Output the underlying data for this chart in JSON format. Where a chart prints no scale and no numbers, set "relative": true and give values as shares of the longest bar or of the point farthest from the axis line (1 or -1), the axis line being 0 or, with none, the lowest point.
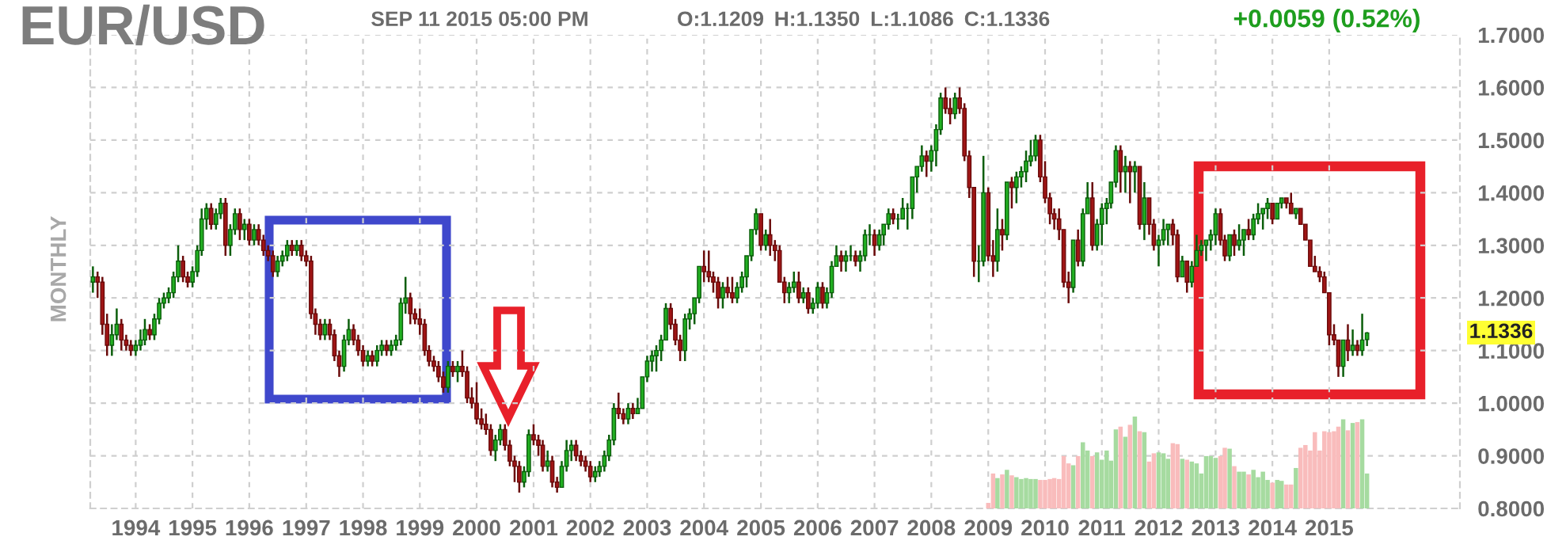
{
  "chart_data": [
    {
      "type": "candlestick",
      "title": "EUR/USD",
      "ylabel": "MONTHLY",
      "annotations": [
        "SEP 11 2015 05:00 PM",
        "O:1.1209",
        "H:1.1350",
        "L:1.1086",
        "C:1.1336",
        "+0.0059 (0.52%)",
        "1.1336"
      ],
      "x": [
        "1993-04",
        "1993-05",
        "1993-06",
        "1993-07",
        "1993-08",
        "1993-09",
        "1993-10",
        "1993-11",
        "1993-12",
        "1994-01",
        "1994-02",
        "1994-03",
        "1994-04",
        "1994-05",
        "1994-06",
        "1994-07",
        "1994-08",
        "1994-09",
        "1994-10",
        "1994-11",
        "1994-12",
        "1995-01",
        "1995-02",
        "1995-03",
        "1995-04",
        "1995-05",
        "1995-06",
        "1995-07",
        "1995-08",
        "1995-09",
        "1995-10",
        "1995-11",
        "1995-12",
        "1996-01",
        "1996-02",
        "1996-03",
        "1996-04",
        "1996-05",
        "1996-06",
        "1996-07",
        "1996-08",
        "1996-09",
        "1996-10",
        "1996-11",
        "1996-12",
        "1997-01",
        "1997-02",
        "1997-03",
        "1997-04",
        "1997-05",
        "1997-06",
        "1997-07",
        "1997-08",
        "1997-09",
        "1997-10",
        "1997-11",
        "1997-12",
        "1998-01",
        "1998-02",
        "1998-03",
        "1998-04",
        "1998-05",
        "1998-06",
        "1998-07",
        "1998-08",
        "1998-09",
        "1998-10",
        "1998-11",
        "1998-12",
        "1999-01",
        "1999-02",
        "1999-03",
        "1999-04",
        "1999-05",
        "1999-06",
        "1999-07",
        "1999-08",
        "1999-09",
        "1999-10",
        "1999-11",
        "1999-12",
        "2000-01",
        "2000-02",
        "2000-03",
        "2000-04",
        "2000-05",
        "2000-06",
        "2000-07",
        "2000-08",
        "2000-09",
        "2000-10",
        "2000-11",
        "2000-12",
        "2001-01",
        "2001-02",
        "2001-03",
        "2001-04",
        "2001-05",
        "2001-06",
        "2001-07",
        "2001-08",
        "2001-09",
        "2001-10",
        "2001-11",
        "2001-12",
        "2002-01",
        "2002-02",
        "2002-03",
        "2002-04",
        "2002-05",
        "2002-06",
        "2002-07",
        "2002-08",
        "2002-09",
        "2002-10",
        "2002-11",
        "2002-12",
        "2003-01",
        "2003-02",
        "2003-03",
        "2003-04",
        "2003-05",
        "2003-06",
        "2003-07",
        "2003-08",
        "2003-09",
        "2003-10",
        "2003-11",
        "2003-12",
        "2004-01",
        "2004-02",
        "2004-03",
        "2004-04",
        "2004-05",
        "2004-06",
        "2004-07",
        "2004-08",
        "2004-09",
        "2004-10",
        "2004-11",
        "2004-12",
        "2005-01",
        "2005-02",
        "2005-03",
        "2005-04",
        "2005-05",
        "2005-06",
        "2005-07",
        "2005-08",
        "2005-09",
        "2005-10",
        "2005-11",
        "2005-12",
        "2006-01",
        "2006-02",
        "2006-03",
        "2006-04",
        "2006-05",
        "2006-06",
        "2006-07",
        "2006-08",
        "2006-09",
        "2006-10",
        "2006-11",
        "2006-12",
        "2007-01",
        "2007-02",
        "2007-03",
        "2007-04",
        "2007-05",
        "2007-06",
        "2007-07",
        "2007-08",
        "2007-09",
        "2007-10",
        "2007-11",
        "2007-12",
        "2008-01",
        "2008-02",
        "2008-03",
        "2008-04",
        "2008-05",
        "2008-06",
        "2008-07",
        "2008-08",
        "2008-09",
        "2008-10",
        "2008-11",
        "2008-12",
        "2009-01",
        "2009-02",
        "2009-03",
        "2009-04",
        "2009-05",
        "2009-06",
        "2009-07",
        "2009-08",
        "2009-09",
        "2009-10",
        "2009-11",
        "2009-12",
        "2010-01",
        "2010-02",
        "2010-03",
        "2010-04",
        "2010-05",
        "2010-06",
        "2010-07",
        "2010-08",
        "2010-09",
        "2010-10",
        "2010-11",
        "2010-12",
        "2011-01",
        "2011-02",
        "2011-03",
        "2011-04",
        "2011-05",
        "2011-06",
        "2011-07",
        "2011-08",
        "2011-09",
        "2011-10",
        "2011-11",
        "2011-12",
        "2012-01",
        "2012-02",
        "2012-03",
        "2012-04",
        "2012-05",
        "2012-06",
        "2012-07",
        "2012-08",
        "2012-09",
        "2012-10",
        "2012-11",
        "2012-12",
        "2013-01",
        "2013-02",
        "2013-03",
        "2013-04",
        "2013-05",
        "2013-06",
        "2013-07",
        "2013-08",
        "2013-09",
        "2013-10",
        "2013-11",
        "2013-12",
        "2014-01",
        "2014-02",
        "2014-03",
        "2014-04",
        "2014-05",
        "2014-06",
        "2014-07",
        "2014-08",
        "2014-09",
        "2014-10",
        "2014-11",
        "2014-12",
        "2015-01",
        "2015-02",
        "2015-03",
        "2015-04",
        "2015-05",
        "2015-06",
        "2015-07",
        "2015-08",
        "2015-09"
      ],
      "ohlc": [
        [
          1.23,
          1.26,
          1.21,
          1.24
        ],
        [
          1.24,
          1.25,
          1.2,
          1.23
        ],
        [
          1.23,
          1.24,
          1.13,
          1.15
        ],
        [
          1.15,
          1.17,
          1.09,
          1.11
        ],
        [
          1.11,
          1.15,
          1.09,
          1.13
        ],
        [
          1.13,
          1.18,
          1.12,
          1.15
        ],
        [
          1.15,
          1.16,
          1.1,
          1.12
        ],
        [
          1.12,
          1.13,
          1.1,
          1.11
        ],
        [
          1.11,
          1.12,
          1.09,
          1.1
        ],
        [
          1.1,
          1.12,
          1.09,
          1.11
        ],
        [
          1.11,
          1.14,
          1.1,
          1.12
        ],
        [
          1.12,
          1.16,
          1.11,
          1.14
        ],
        [
          1.14,
          1.15,
          1.12,
          1.13
        ],
        [
          1.13,
          1.17,
          1.12,
          1.16
        ],
        [
          1.16,
          1.2,
          1.15,
          1.19
        ],
        [
          1.19,
          1.21,
          1.18,
          1.2
        ],
        [
          1.2,
          1.22,
          1.19,
          1.21
        ],
        [
          1.21,
          1.25,
          1.2,
          1.24
        ],
        [
          1.24,
          1.3,
          1.23,
          1.27
        ],
        [
          1.27,
          1.28,
          1.23,
          1.24
        ],
        [
          1.24,
          1.25,
          1.22,
          1.23
        ],
        [
          1.23,
          1.26,
          1.22,
          1.25
        ],
        [
          1.25,
          1.3,
          1.24,
          1.29
        ],
        [
          1.29,
          1.37,
          1.28,
          1.35
        ],
        [
          1.35,
          1.38,
          1.33,
          1.37
        ],
        [
          1.37,
          1.38,
          1.33,
          1.34
        ],
        [
          1.34,
          1.37,
          1.33,
          1.36
        ],
        [
          1.36,
          1.39,
          1.35,
          1.38
        ],
        [
          1.38,
          1.39,
          1.28,
          1.3
        ],
        [
          1.3,
          1.34,
          1.28,
          1.33
        ],
        [
          1.33,
          1.37,
          1.32,
          1.36
        ],
        [
          1.36,
          1.37,
          1.31,
          1.33
        ],
        [
          1.33,
          1.35,
          1.31,
          1.34
        ],
        [
          1.34,
          1.35,
          1.3,
          1.31
        ],
        [
          1.31,
          1.34,
          1.3,
          1.33
        ],
        [
          1.33,
          1.34,
          1.3,
          1.31
        ],
        [
          1.31,
          1.32,
          1.28,
          1.29
        ],
        [
          1.29,
          1.3,
          1.27,
          1.28
        ],
        [
          1.28,
          1.29,
          1.24,
          1.25
        ],
        [
          1.25,
          1.28,
          1.24,
          1.27
        ],
        [
          1.27,
          1.29,
          1.26,
          1.28
        ],
        [
          1.28,
          1.31,
          1.27,
          1.3
        ],
        [
          1.3,
          1.31,
          1.28,
          1.29
        ],
        [
          1.29,
          1.31,
          1.28,
          1.3
        ],
        [
          1.3,
          1.31,
          1.27,
          1.28
        ],
        [
          1.28,
          1.29,
          1.26,
          1.27
        ],
        [
          1.27,
          1.28,
          1.16,
          1.17
        ],
        [
          1.17,
          1.18,
          1.13,
          1.15
        ],
        [
          1.15,
          1.16,
          1.12,
          1.13
        ],
        [
          1.13,
          1.16,
          1.12,
          1.15
        ],
        [
          1.15,
          1.16,
          1.12,
          1.13
        ],
        [
          1.13,
          1.14,
          1.08,
          1.09
        ],
        [
          1.09,
          1.1,
          1.05,
          1.07
        ],
        [
          1.07,
          1.13,
          1.06,
          1.12
        ],
        [
          1.12,
          1.16,
          1.11,
          1.14
        ],
        [
          1.14,
          1.15,
          1.11,
          1.12
        ],
        [
          1.12,
          1.13,
          1.09,
          1.1
        ],
        [
          1.1,
          1.11,
          1.07,
          1.08
        ],
        [
          1.08,
          1.1,
          1.07,
          1.09
        ],
        [
          1.09,
          1.1,
          1.07,
          1.08
        ],
        [
          1.08,
          1.11,
          1.07,
          1.1
        ],
        [
          1.1,
          1.12,
          1.09,
          1.11
        ],
        [
          1.11,
          1.12,
          1.09,
          1.1
        ],
        [
          1.1,
          1.12,
          1.09,
          1.11
        ],
        [
          1.11,
          1.13,
          1.1,
          1.12
        ],
        [
          1.12,
          1.2,
          1.11,
          1.19
        ],
        [
          1.19,
          1.24,
          1.17,
          1.2
        ],
        [
          1.2,
          1.21,
          1.15,
          1.17
        ],
        [
          1.17,
          1.18,
          1.15,
          1.16
        ],
        [
          1.16,
          1.18,
          1.13,
          1.15
        ],
        [
          1.15,
          1.16,
          1.09,
          1.1
        ],
        [
          1.1,
          1.11,
          1.07,
          1.08
        ],
        [
          1.08,
          1.09,
          1.06,
          1.07
        ],
        [
          1.07,
          1.08,
          1.04,
          1.05
        ],
        [
          1.05,
          1.06,
          1.02,
          1.03
        ],
        [
          1.03,
          1.08,
          1.02,
          1.07
        ],
        [
          1.07,
          1.08,
          1.05,
          1.06
        ],
        [
          1.06,
          1.08,
          1.04,
          1.07
        ],
        [
          1.07,
          1.1,
          1.05,
          1.06
        ],
        [
          1.06,
          1.07,
          1.0,
          1.01
        ],
        [
          1.01,
          1.03,
          0.99,
          1.0
        ],
        [
          1.0,
          1.04,
          0.96,
          0.97
        ],
        [
          0.97,
          0.99,
          0.95,
          0.96
        ],
        [
          0.96,
          0.98,
          0.94,
          0.95
        ],
        [
          0.95,
          0.96,
          0.9,
          0.91
        ],
        [
          0.91,
          0.94,
          0.89,
          0.93
        ],
        [
          0.93,
          0.96,
          0.92,
          0.95
        ],
        [
          0.95,
          0.96,
          0.91,
          0.92
        ],
        [
          0.92,
          0.93,
          0.88,
          0.89
        ],
        [
          0.89,
          0.9,
          0.85,
          0.88
        ],
        [
          0.88,
          0.89,
          0.83,
          0.85
        ],
        [
          0.85,
          0.88,
          0.84,
          0.87
        ],
        [
          0.87,
          0.95,
          0.86,
          0.94
        ],
        [
          0.94,
          0.96,
          0.92,
          0.93
        ],
        [
          0.93,
          0.94,
          0.9,
          0.92
        ],
        [
          0.92,
          0.93,
          0.87,
          0.88
        ],
        [
          0.88,
          0.91,
          0.87,
          0.89
        ],
        [
          0.89,
          0.9,
          0.84,
          0.85
        ],
        [
          0.85,
          0.86,
          0.83,
          0.84
        ],
        [
          0.84,
          0.89,
          0.84,
          0.88
        ],
        [
          0.88,
          0.93,
          0.87,
          0.91
        ],
        [
          0.91,
          0.93,
          0.89,
          0.92
        ],
        [
          0.92,
          0.93,
          0.89,
          0.9
        ],
        [
          0.9,
          0.91,
          0.88,
          0.89
        ],
        [
          0.89,
          0.9,
          0.87,
          0.88
        ],
        [
          0.88,
          0.89,
          0.85,
          0.86
        ],
        [
          0.86,
          0.88,
          0.85,
          0.87
        ],
        [
          0.87,
          0.89,
          0.86,
          0.88
        ],
        [
          0.88,
          0.91,
          0.87,
          0.9
        ],
        [
          0.9,
          0.94,
          0.89,
          0.93
        ],
        [
          0.93,
          1.0,
          0.92,
          0.99
        ],
        [
          0.99,
          1.02,
          0.97,
          0.98
        ],
        [
          0.98,
          0.99,
          0.96,
          0.97
        ],
        [
          0.97,
          1.0,
          0.96,
          0.99
        ],
        [
          0.99,
          1.0,
          0.97,
          0.98
        ],
        [
          0.98,
          1.01,
          0.98,
          0.99
        ],
        [
          0.99,
          1.05,
          0.99,
          1.05
        ],
        [
          1.05,
          1.09,
          1.04,
          1.08
        ],
        [
          1.08,
          1.1,
          1.06,
          1.09
        ],
        [
          1.09,
          1.11,
          1.06,
          1.1
        ],
        [
          1.1,
          1.13,
          1.08,
          1.12
        ],
        [
          1.12,
          1.19,
          1.12,
          1.18
        ],
        [
          1.18,
          1.19,
          1.14,
          1.15
        ],
        [
          1.15,
          1.16,
          1.11,
          1.12
        ],
        [
          1.12,
          1.13,
          1.08,
          1.1
        ],
        [
          1.1,
          1.17,
          1.08,
          1.16
        ],
        [
          1.16,
          1.18,
          1.14,
          1.17
        ],
        [
          1.17,
          1.2,
          1.15,
          1.2
        ],
        [
          1.2,
          1.26,
          1.19,
          1.26
        ],
        [
          1.26,
          1.29,
          1.23,
          1.25
        ],
        [
          1.25,
          1.29,
          1.23,
          1.24
        ],
        [
          1.24,
          1.25,
          1.21,
          1.23
        ],
        [
          1.23,
          1.24,
          1.18,
          1.2
        ],
        [
          1.2,
          1.23,
          1.18,
          1.22
        ],
        [
          1.22,
          1.24,
          1.2,
          1.21
        ],
        [
          1.21,
          1.24,
          1.19,
          1.2
        ],
        [
          1.2,
          1.23,
          1.19,
          1.22
        ],
        [
          1.22,
          1.25,
          1.21,
          1.24
        ],
        [
          1.24,
          1.28,
          1.22,
          1.28
        ],
        [
          1.28,
          1.33,
          1.27,
          1.33
        ],
        [
          1.33,
          1.37,
          1.32,
          1.36
        ],
        [
          1.36,
          1.36,
          1.29,
          1.3
        ],
        [
          1.3,
          1.33,
          1.29,
          1.32
        ],
        [
          1.32,
          1.35,
          1.28,
          1.3
        ],
        [
          1.3,
          1.31,
          1.27,
          1.29
        ],
        [
          1.29,
          1.3,
          1.23,
          1.23
        ],
        [
          1.23,
          1.24,
          1.19,
          1.21
        ],
        [
          1.21,
          1.23,
          1.19,
          1.22
        ],
        [
          1.22,
          1.25,
          1.21,
          1.23
        ],
        [
          1.23,
          1.25,
          1.19,
          1.2
        ],
        [
          1.2,
          1.22,
          1.19,
          1.21
        ],
        [
          1.21,
          1.22,
          1.17,
          1.18
        ],
        [
          1.18,
          1.2,
          1.17,
          1.19
        ],
        [
          1.19,
          1.23,
          1.18,
          1.22
        ],
        [
          1.22,
          1.23,
          1.18,
          1.19
        ],
        [
          1.19,
          1.22,
          1.18,
          1.21
        ],
        [
          1.21,
          1.27,
          1.2,
          1.26
        ],
        [
          1.26,
          1.3,
          1.26,
          1.28
        ],
        [
          1.28,
          1.29,
          1.25,
          1.27
        ],
        [
          1.27,
          1.29,
          1.25,
          1.28
        ],
        [
          1.28,
          1.3,
          1.27,
          1.28
        ],
        [
          1.28,
          1.29,
          1.26,
          1.27
        ],
        [
          1.27,
          1.29,
          1.25,
          1.28
        ],
        [
          1.28,
          1.33,
          1.27,
          1.32
        ],
        [
          1.32,
          1.34,
          1.3,
          1.32
        ],
        [
          1.32,
          1.33,
          1.28,
          1.3
        ],
        [
          1.3,
          1.33,
          1.29,
          1.32
        ],
        [
          1.32,
          1.34,
          1.3,
          1.34
        ],
        [
          1.34,
          1.37,
          1.33,
          1.36
        ],
        [
          1.36,
          1.37,
          1.34,
          1.35
        ],
        [
          1.35,
          1.36,
          1.33,
          1.35
        ],
        [
          1.35,
          1.39,
          1.35,
          1.37
        ],
        [
          1.37,
          1.38,
          1.33,
          1.37
        ],
        [
          1.37,
          1.43,
          1.35,
          1.43
        ],
        [
          1.43,
          1.45,
          1.4,
          1.45
        ],
        [
          1.45,
          1.49,
          1.44,
          1.47
        ],
        [
          1.47,
          1.48,
          1.43,
          1.46
        ],
        [
          1.46,
          1.49,
          1.44,
          1.48
        ],
        [
          1.48,
          1.53,
          1.45,
          1.52
        ],
        [
          1.52,
          1.59,
          1.51,
          1.58
        ],
        [
          1.58,
          1.6,
          1.55,
          1.56
        ],
        [
          1.56,
          1.58,
          1.53,
          1.55
        ],
        [
          1.55,
          1.59,
          1.54,
          1.58
        ],
        [
          1.58,
          1.6,
          1.55,
          1.56
        ],
        [
          1.56,
          1.57,
          1.46,
          1.47
        ],
        [
          1.47,
          1.48,
          1.39,
          1.41
        ],
        [
          1.41,
          1.41,
          1.24,
          1.27
        ],
        [
          1.27,
          1.3,
          1.23,
          1.27
        ],
        [
          1.27,
          1.47,
          1.26,
          1.4
        ],
        [
          1.4,
          1.41,
          1.27,
          1.28
        ],
        [
          1.28,
          1.31,
          1.24,
          1.27
        ],
        [
          1.27,
          1.37,
          1.25,
          1.33
        ],
        [
          1.33,
          1.35,
          1.29,
          1.32
        ],
        [
          1.32,
          1.42,
          1.31,
          1.42
        ],
        [
          1.42,
          1.43,
          1.37,
          1.41
        ],
        [
          1.41,
          1.44,
          1.38,
          1.43
        ],
        [
          1.43,
          1.45,
          1.41,
          1.44
        ],
        [
          1.44,
          1.48,
          1.42,
          1.46
        ],
        [
          1.46,
          1.5,
          1.45,
          1.47
        ],
        [
          1.47,
          1.51,
          1.46,
          1.5
        ],
        [
          1.5,
          1.51,
          1.42,
          1.43
        ],
        [
          1.43,
          1.46,
          1.38,
          1.39
        ],
        [
          1.39,
          1.4,
          1.34,
          1.36
        ],
        [
          1.36,
          1.37,
          1.33,
          1.35
        ],
        [
          1.35,
          1.37,
          1.31,
          1.33
        ],
        [
          1.33,
          1.33,
          1.22,
          1.23
        ],
        [
          1.23,
          1.25,
          1.19,
          1.22
        ],
        [
          1.22,
          1.31,
          1.21,
          1.31
        ],
        [
          1.31,
          1.33,
          1.26,
          1.27
        ],
        [
          1.27,
          1.37,
          1.26,
          1.36
        ],
        [
          1.36,
          1.42,
          1.36,
          1.39
        ],
        [
          1.39,
          1.42,
          1.29,
          1.3
        ],
        [
          1.3,
          1.35,
          1.29,
          1.34
        ],
        [
          1.34,
          1.38,
          1.3,
          1.37
        ],
        [
          1.37,
          1.39,
          1.34,
          1.38
        ],
        [
          1.38,
          1.42,
          1.37,
          1.42
        ],
        [
          1.42,
          1.49,
          1.41,
          1.48
        ],
        [
          1.48,
          1.49,
          1.4,
          1.44
        ],
        [
          1.44,
          1.47,
          1.4,
          1.45
        ],
        [
          1.45,
          1.46,
          1.38,
          1.44
        ],
        [
          1.44,
          1.46,
          1.4,
          1.45
        ],
        [
          1.45,
          1.45,
          1.33,
          1.34
        ],
        [
          1.34,
          1.42,
          1.31,
          1.39
        ],
        [
          1.39,
          1.39,
          1.32,
          1.34
        ],
        [
          1.34,
          1.35,
          1.29,
          1.3
        ],
        [
          1.3,
          1.32,
          1.26,
          1.31
        ],
        [
          1.31,
          1.35,
          1.3,
          1.33
        ],
        [
          1.33,
          1.34,
          1.3,
          1.34
        ],
        [
          1.34,
          1.35,
          1.3,
          1.32
        ],
        [
          1.32,
          1.33,
          1.23,
          1.24
        ],
        [
          1.24,
          1.28,
          1.24,
          1.27
        ],
        [
          1.27,
          1.27,
          1.21,
          1.23
        ],
        [
          1.23,
          1.27,
          1.22,
          1.26
        ],
        [
          1.26,
          1.32,
          1.26,
          1.29
        ],
        [
          1.29,
          1.31,
          1.28,
          1.3
        ],
        [
          1.3,
          1.31,
          1.27,
          1.31
        ],
        [
          1.31,
          1.33,
          1.29,
          1.32
        ],
        [
          1.32,
          1.37,
          1.3,
          1.36
        ],
        [
          1.36,
          1.37,
          1.3,
          1.31
        ],
        [
          1.31,
          1.32,
          1.27,
          1.28
        ],
        [
          1.28,
          1.32,
          1.27,
          1.32
        ],
        [
          1.32,
          1.33,
          1.28,
          1.3
        ],
        [
          1.3,
          1.34,
          1.29,
          1.31
        ],
        [
          1.31,
          1.33,
          1.28,
          1.33
        ],
        [
          1.33,
          1.35,
          1.31,
          1.32
        ],
        [
          1.32,
          1.36,
          1.31,
          1.35
        ],
        [
          1.35,
          1.38,
          1.34,
          1.36
        ],
        [
          1.36,
          1.37,
          1.33,
          1.37
        ],
        [
          1.37,
          1.39,
          1.35,
          1.38
        ],
        [
          1.38,
          1.38,
          1.34,
          1.35
        ],
        [
          1.35,
          1.38,
          1.35,
          1.38
        ],
        [
          1.38,
          1.39,
          1.37,
          1.39
        ],
        [
          1.39,
          1.39,
          1.37,
          1.38
        ],
        [
          1.38,
          1.4,
          1.36,
          1.36
        ],
        [
          1.36,
          1.37,
          1.35,
          1.37
        ],
        [
          1.37,
          1.37,
          1.34,
          1.34
        ],
        [
          1.34,
          1.34,
          1.31,
          1.31
        ],
        [
          1.31,
          1.31,
          1.26,
          1.26
        ],
        [
          1.26,
          1.28,
          1.25,
          1.25
        ],
        [
          1.25,
          1.26,
          1.23,
          1.24
        ],
        [
          1.24,
          1.25,
          1.21,
          1.21
        ],
        [
          1.21,
          1.21,
          1.11,
          1.13
        ],
        [
          1.13,
          1.15,
          1.11,
          1.12
        ],
        [
          1.12,
          1.12,
          1.05,
          1.07
        ],
        [
          1.07,
          1.12,
          1.05,
          1.12
        ],
        [
          1.12,
          1.15,
          1.08,
          1.1
        ],
        [
          1.1,
          1.14,
          1.09,
          1.11
        ],
        [
          1.11,
          1.12,
          1.09,
          1.1
        ],
        [
          1.1,
          1.17,
          1.09,
          1.12
        ],
        [
          1.1209,
          1.135,
          1.1086,
          1.1336
        ]
      ],
      "xlim": [
        "1993-03-15",
        "2017-04-20"
      ],
      "xticks": [
        "1994",
        "1995",
        "1996",
        "1997",
        "1998",
        "1999",
        "2000",
        "2001",
        "2002",
        "2003",
        "2004",
        "2005",
        "2006",
        "2007",
        "2008",
        "2009",
        "2010",
        "2011",
        "2012",
        "2013",
        "2014",
        "2015"
      ],
      "ylim": [
        0.8,
        1.7
      ],
      "yticks": [
        {
          "value": 0.8,
          "label": "0.8000"
        },
        {
          "value": 0.9,
          "label": "0.9000"
        },
        {
          "value": 1.0,
          "label": "1.0000"
        },
        {
          "value": 1.1,
          "label": "1.1000"
        },
        {
          "value": 1.2,
          "label": "1.2000"
        },
        {
          "value": 1.3,
          "label": "1.3000"
        },
        {
          "value": 1.4,
          "label": "1.4000"
        },
        {
          "value": 1.5,
          "label": "1.5000"
        },
        {
          "value": 1.6,
          "label": "1.6000"
        },
        {
          "value": 1.7,
          "label": "1.7000"
        }
      ],
      "grid": true
    },
    {
      "type": "bar",
      "relative": true,
      "tick_labels": false,
      "xlim": [
        "1993-03-15",
        "2017-04-20"
      ],
      "x": [
        "2009-01",
        "2009-02",
        "2009-03",
        "2009-04",
        "2009-05",
        "2009-06",
        "2009-07",
        "2009-08",
        "2009-09",
        "2009-10",
        "2009-11",
        "2009-12",
        "2010-01",
        "2010-02",
        "2010-03",
        "2010-04",
        "2010-05",
        "2010-06",
        "2010-07",
        "2010-08",
        "2010-09",
        "2010-10",
        "2010-11",
        "2010-12",
        "2011-01",
        "2011-02",
        "2011-03",
        "2011-04",
        "2011-05",
        "2011-06",
        "2011-07",
        "2011-08",
        "2011-09",
        "2011-10",
        "2011-11",
        "2011-12",
        "2012-01",
        "2012-02",
        "2012-03",
        "2012-04",
        "2012-05",
        "2012-06",
        "2012-07",
        "2012-08",
        "2012-09",
        "2012-10",
        "2012-11",
        "2012-12",
        "2013-01",
        "2013-02",
        "2013-03",
        "2013-04",
        "2013-05",
        "2013-06",
        "2013-07",
        "2013-08",
        "2013-09",
        "2013-10",
        "2013-11",
        "2013-12",
        "2014-01",
        "2014-02",
        "2014-03",
        "2014-04",
        "2014-05",
        "2014-06",
        "2014-07",
        "2014-08",
        "2014-09",
        "2014-10",
        "2014-11",
        "2014-12",
        "2015-01",
        "2015-02",
        "2015-03",
        "2015-04",
        "2015-05",
        "2015-06",
        "2015-07",
        "2015-08",
        "2015-09"
      ],
      "values": [
        0.06,
        0.38,
        0.33,
        0.37,
        0.42,
        0.36,
        0.34,
        0.32,
        0.33,
        0.32,
        0.32,
        0.31,
        0.31,
        0.32,
        0.33,
        0.32,
        0.57,
        0.49,
        0.47,
        0.57,
        0.72,
        0.63,
        0.57,
        0.61,
        0.53,
        0.63,
        0.52,
        0.86,
        0.89,
        0.78,
        0.91,
        1.0,
        0.84,
        0.83,
        0.51,
        0.6,
        0.61,
        0.6,
        0.54,
        0.71,
        0.7,
        0.54,
        0.53,
        0.51,
        0.49,
        0.38,
        0.57,
        0.57,
        0.55,
        0.57,
        0.66,
        0.65,
        0.46,
        0.4,
        0.4,
        0.37,
        0.42,
        0.34,
        0.4,
        0.31,
        0.28,
        0.31,
        0.3,
        0.26,
        0.26,
        0.44,
        0.66,
        0.69,
        0.63,
        0.83,
        0.63,
        0.84,
        0.83,
        0.84,
        0.89,
        0.97,
        0.85,
        0.93,
        0.94,
        0.97,
        0.38
      ],
      "colors": [
        "#f9bcbc",
        "#f9bcbc",
        "#a6dba0",
        "#f9bcbc",
        "#a6dba0",
        "#f9bcbc",
        "#a6dba0",
        "#a6dba0",
        "#a6dba0",
        "#a6dba0",
        "#a6dba0",
        "#f9bcbc",
        "#f9bcbc",
        "#f9bcbc",
        "#f9bcbc",
        "#f9bcbc",
        "#f9bcbc",
        "#f9bcbc",
        "#a6dba0",
        "#f9bcbc",
        "#a6dba0",
        "#a6dba0",
        "#f9bcbc",
        "#a6dba0",
        "#a6dba0",
        "#a6dba0",
        "#a6dba0",
        "#a6dba0",
        "#f9bcbc",
        "#a6dba0",
        "#f9bcbc",
        "#a6dba0",
        "#f9bcbc",
        "#a6dba0",
        "#f9bcbc",
        "#f9bcbc",
        "#a6dba0",
        "#a6dba0",
        "#a6dba0",
        "#f9bcbc",
        "#f9bcbc",
        "#a6dba0",
        "#f9bcbc",
        "#a6dba0",
        "#a6dba0",
        "#a6dba0",
        "#a6dba0",
        "#a6dba0",
        "#a6dba0",
        "#f9bcbc",
        "#f9bcbc",
        "#a6dba0",
        "#f9bcbc",
        "#a6dba0",
        "#a6dba0",
        "#f9bcbc",
        "#a6dba0",
        "#a6dba0",
        "#a6dba0",
        "#a6dba0",
        "#f9bcbc",
        "#a6dba0",
        "#a6dba0",
        "#f9bcbc",
        "#f9bcbc",
        "#a6dba0",
        "#f9bcbc",
        "#f9bcbc",
        "#f9bcbc",
        "#f9bcbc",
        "#f9bcbc",
        "#f9bcbc",
        "#f9bcbc",
        "#f9bcbc",
        "#f9bcbc",
        "#a6dba0",
        "#f9bcbc",
        "#a6dba0",
        "#f9bcbc",
        "#a6dba0",
        "#a6dba0"
      ]
    }
  ]
}
